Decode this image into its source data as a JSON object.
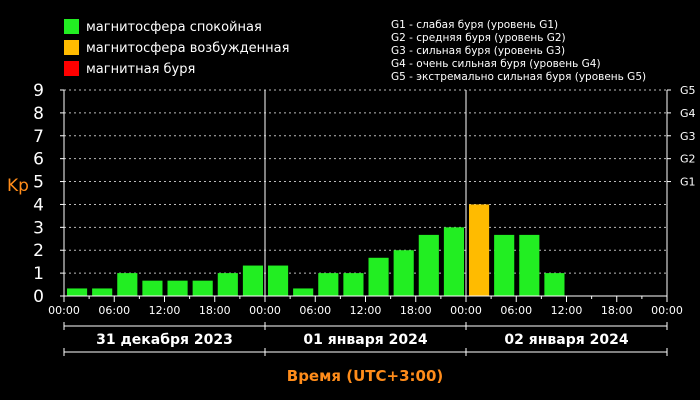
{
  "chart_data": {
    "type": "bar",
    "title": "",
    "ylabel": "Kp",
    "xlabel": "Время (UTC+3:00)",
    "ylim": [
      0,
      9
    ],
    "yticks": [
      "0",
      "1",
      "2",
      "3",
      "4",
      "5",
      "6",
      "7",
      "8",
      "9"
    ],
    "xticks": [
      "00:00",
      "06:00",
      "12:00",
      "18:00",
      "00:00",
      "06:00",
      "12:00",
      "18:00",
      "00:00",
      "06:00",
      "12:00",
      "18:00",
      "00:00"
    ],
    "days": [
      "31 декабря 2023",
      "01 января 2024",
      "02 января 2024"
    ],
    "values": [
      0.33,
      0.33,
      1.0,
      0.67,
      0.67,
      0.67,
      1.0,
      1.33,
      1.33,
      0.33,
      1.0,
      1.0,
      1.67,
      2.0,
      2.67,
      3.0,
      4.0,
      2.67,
      2.67,
      1.0
    ],
    "levels": [
      "quiet",
      "quiet",
      "quiet",
      "quiet",
      "quiet",
      "quiet",
      "quiet",
      "quiet",
      "quiet",
      "quiet",
      "quiet",
      "quiet",
      "quiet",
      "quiet",
      "quiet",
      "quiet",
      "active",
      "quiet",
      "quiet",
      "quiet"
    ],
    "slots_total": 24,
    "colors": {
      "quiet": "#22ee22",
      "active": "#ffbb00",
      "storm": "#ff0000",
      "grid": "#bbbbbb"
    },
    "legend": [
      {
        "key": "quiet",
        "label": "магнитосфера спокойная"
      },
      {
        "key": "active",
        "label": "магнитосфера возбужденная"
      },
      {
        "key": "storm",
        "label": "магнитная буря"
      }
    ],
    "g_legend": [
      "G1 - слабая буря (уровень G1)",
      "G2 - средняя буря (уровень G2)",
      "G3 - сильная буря (уровень G3)",
      "G4 - очень сильная буря (уровень G4)",
      "G5 - экстремально сильная буря (уровень G5)"
    ],
    "g_ticks": [
      {
        "label": "G1",
        "value": 5
      },
      {
        "label": "G2",
        "value": 6
      },
      {
        "label": "G3",
        "value": 7
      },
      {
        "label": "G4",
        "value": 8
      },
      {
        "label": "G5",
        "value": 9
      }
    ]
  }
}
